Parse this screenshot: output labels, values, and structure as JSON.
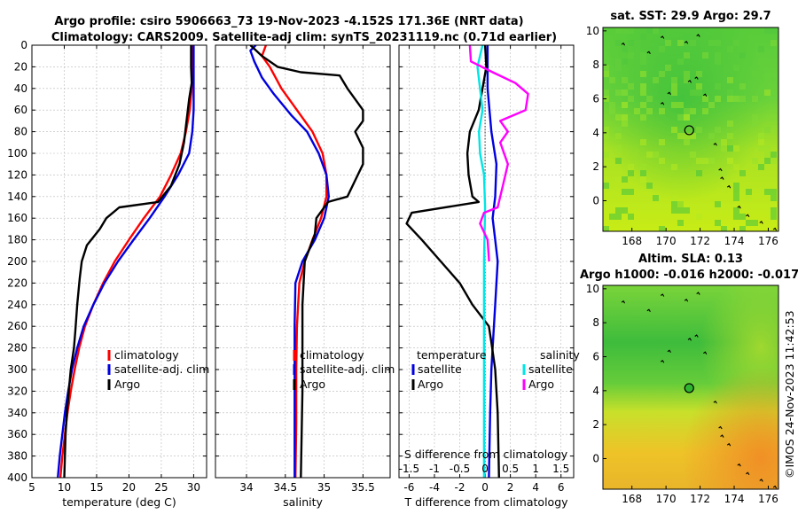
{
  "header": {
    "line1": "Argo profile: csiro 5906663_73 19-Nov-2023 -4.152S 171.36E (NRT data)",
    "line2": "Climatology: CARS2009. Satellite-adj clim: synTS_20231119.nc (0.71d earlier)"
  },
  "watermark": "©IMOS 24-Nov-2023 11:42:53",
  "colors": {
    "climatology": "#ff0000",
    "satellite": "#0000e0",
    "argo": "#000000",
    "salinity_satellite": "#00e5e5",
    "salinity_argo": "#ff00ff",
    "map_land": "#000000"
  },
  "chart_data": [
    {
      "type": "line",
      "id": "temperature",
      "xlabel": "temperature (deg C)",
      "ylabel": "",
      "xlim": [
        5,
        32
      ],
      "ylim": [
        400,
        0
      ],
      "xticks": [
        5,
        10,
        15,
        20,
        25,
        30
      ],
      "xtick_labels": [
        "5",
        "10",
        "15",
        "20",
        "25",
        "30"
      ],
      "yticks": [
        0,
        20,
        40,
        60,
        80,
        100,
        120,
        140,
        160,
        180,
        200,
        220,
        240,
        260,
        280,
        300,
        320,
        340,
        360,
        380,
        400
      ],
      "ytick_labels": [
        "0",
        "20",
        "40",
        "60",
        "80",
        "100",
        "120",
        "140",
        "160",
        "180",
        "200",
        "220",
        "240",
        "260",
        "280",
        "300",
        "320",
        "340",
        "360",
        "380",
        "400"
      ],
      "legend": [
        "climatology",
        "satellite-adj. clim",
        "Argo"
      ],
      "series": [
        {
          "name": "climatology",
          "color": "#ff0000",
          "points": [
            [
              29.8,
              0
            ],
            [
              29.8,
              20
            ],
            [
              29.7,
              40
            ],
            [
              29.4,
              60
            ],
            [
              28.8,
              80
            ],
            [
              28,
              100
            ],
            [
              26.5,
              120
            ],
            [
              24.8,
              140
            ],
            [
              22.3,
              160
            ],
            [
              20,
              180
            ],
            [
              17.8,
              200
            ],
            [
              16,
              220
            ],
            [
              14.5,
              240
            ],
            [
              13.2,
              260
            ],
            [
              12.3,
              280
            ],
            [
              11.6,
              300
            ],
            [
              11,
              320
            ],
            [
              10.5,
              340
            ],
            [
              10.1,
              360
            ],
            [
              9.7,
              380
            ],
            [
              9.4,
              400
            ]
          ]
        },
        {
          "name": "satellite-adj. clim",
          "color": "#0000e0",
          "points": [
            [
              30,
              0
            ],
            [
              30,
              20
            ],
            [
              30,
              40
            ],
            [
              30,
              60
            ],
            [
              29.8,
              80
            ],
            [
              29.3,
              100
            ],
            [
              27.6,
              120
            ],
            [
              25.5,
              140
            ],
            [
              23.2,
              160
            ],
            [
              20.7,
              180
            ],
            [
              18.3,
              200
            ],
            [
              16.2,
              220
            ],
            [
              14.5,
              240
            ],
            [
              13,
              260
            ],
            [
              12,
              280
            ],
            [
              11.2,
              300
            ],
            [
              10.6,
              320
            ],
            [
              10.1,
              340
            ],
            [
              9.7,
              360
            ],
            [
              9.3,
              380
            ],
            [
              9,
              400
            ]
          ]
        },
        {
          "name": "Argo",
          "color": "#000000",
          "points": [
            [
              29.6,
              0
            ],
            [
              29.6,
              20
            ],
            [
              29.7,
              35
            ],
            [
              29.3,
              50
            ],
            [
              28.9,
              70
            ],
            [
              28.5,
              90
            ],
            [
              27.8,
              110
            ],
            [
              26.5,
              130
            ],
            [
              24.5,
              145
            ],
            [
              18.5,
              150
            ],
            [
              16.5,
              160
            ],
            [
              15.5,
              170
            ],
            [
              13.5,
              185
            ],
            [
              12.7,
              200
            ],
            [
              12.4,
              215
            ],
            [
              12,
              240
            ],
            [
              11.7,
              265
            ],
            [
              11.5,
              280
            ],
            [
              11,
              300
            ],
            [
              10.7,
              320
            ],
            [
              10.4,
              340
            ],
            [
              10.2,
              360
            ],
            [
              10.1,
              380
            ],
            [
              10,
              400
            ]
          ]
        }
      ]
    },
    {
      "type": "line",
      "id": "salinity",
      "xlabel": "salinity",
      "ylabel": "",
      "xlim": [
        33.6,
        35.85
      ],
      "ylim": [
        400,
        0
      ],
      "xticks": [
        34,
        34.5,
        35,
        35.5
      ],
      "xtick_labels": [
        "34",
        "34.5",
        "35",
        "35.5"
      ],
      "legend": [
        "climatology",
        "satellite-adj. clim",
        "Argo"
      ],
      "series": [
        {
          "name": "climatology",
          "color": "#ff0000",
          "points": [
            [
              34.25,
              0
            ],
            [
              34.2,
              10
            ],
            [
              34.3,
              20
            ],
            [
              34.45,
              40
            ],
            [
              34.65,
              60
            ],
            [
              34.85,
              80
            ],
            [
              34.98,
              100
            ],
            [
              35.03,
              120
            ],
            [
              35.03,
              140
            ],
            [
              34.96,
              160
            ],
            [
              34.85,
              180
            ],
            [
              34.75,
              200
            ],
            [
              34.68,
              220
            ],
            [
              34.65,
              260
            ],
            [
              34.64,
              300
            ],
            [
              34.64,
              350
            ],
            [
              34.63,
              400
            ]
          ]
        },
        {
          "name": "satellite-adj. clim",
          "color": "#0000e0",
          "points": [
            [
              34.12,
              0
            ],
            [
              34.05,
              5
            ],
            [
              34.1,
              15
            ],
            [
              34.2,
              30
            ],
            [
              34.35,
              45
            ],
            [
              34.58,
              65
            ],
            [
              34.78,
              80
            ],
            [
              34.93,
              100
            ],
            [
              35.03,
              120
            ],
            [
              35.06,
              140
            ],
            [
              35,
              160
            ],
            [
              34.88,
              180
            ],
            [
              34.72,
              200
            ],
            [
              34.63,
              220
            ],
            [
              34.62,
              260
            ],
            [
              34.62,
              300
            ],
            [
              34.62,
              350
            ],
            [
              34.62,
              400
            ]
          ]
        },
        {
          "name": "Argo",
          "color": "#000000",
          "points": [
            [
              34.05,
              0
            ],
            [
              34.2,
              10
            ],
            [
              34.4,
              20
            ],
            [
              34.7,
              25
            ],
            [
              35.2,
              28
            ],
            [
              35.3,
              40
            ],
            [
              35.5,
              60
            ],
            [
              35.5,
              70
            ],
            [
              35.4,
              80
            ],
            [
              35.5,
              95
            ],
            [
              35.5,
              110
            ],
            [
              35.4,
              125
            ],
            [
              35.3,
              140
            ],
            [
              35.05,
              145
            ],
            [
              34.9,
              160
            ],
            [
              34.88,
              175
            ],
            [
              34.75,
              200
            ],
            [
              34.72,
              240
            ],
            [
              34.72,
              280
            ],
            [
              34.72,
              320
            ],
            [
              34.71,
              360
            ],
            [
              34.7,
              400
            ]
          ]
        }
      ]
    },
    {
      "type": "line",
      "id": "differences",
      "xlabel": "T difference from climatology",
      "xlabel_top": "S difference from climatology",
      "xlim": [
        -6.8,
        7
      ],
      "ylim": [
        400,
        0
      ],
      "xticks": [
        -6,
        -4,
        -2,
        0,
        2,
        4,
        6
      ],
      "xtick_labels": [
        "-6",
        "-4",
        "-2",
        "0",
        "2",
        "4",
        "6"
      ],
      "s_ticks": [
        -1.5,
        -1,
        -0.5,
        0,
        0.5,
        1,
        1.5
      ],
      "s_tick_labels": [
        "-1.5",
        "-1",
        "-0.5",
        "0",
        "0.5",
        "1",
        "1.5"
      ],
      "legend_temperature_title": "temperature",
      "legend_salinity_title": "salinity",
      "legend_satellite": "satellite",
      "legend_argo": "Argo",
      "series": [
        {
          "name": "T satellite",
          "color": "#0000e0",
          "points": [
            [
              0.2,
              0
            ],
            [
              0.2,
              40
            ],
            [
              0.5,
              80
            ],
            [
              0.9,
              110
            ],
            [
              0.8,
              140
            ],
            [
              0.6,
              160
            ],
            [
              0.8,
              180
            ],
            [
              1,
              200
            ],
            [
              0.8,
              240
            ],
            [
              0.6,
              280
            ],
            [
              0.5,
              300
            ],
            [
              0.4,
              340
            ],
            [
              0.3,
              400
            ]
          ]
        },
        {
          "name": "T Argo",
          "color": "#000000",
          "points": [
            [
              0,
              0
            ],
            [
              0.1,
              20
            ],
            [
              -0.2,
              40
            ],
            [
              -0.5,
              60
            ],
            [
              -1.2,
              80
            ],
            [
              -1.4,
              100
            ],
            [
              -1.3,
              120
            ],
            [
              -1,
              140
            ],
            [
              -0.5,
              145
            ],
            [
              -5.8,
              155
            ],
            [
              -6.2,
              165
            ],
            [
              -5,
              180
            ],
            [
              -3.5,
              200
            ],
            [
              -2,
              220
            ],
            [
              -1,
              240
            ],
            [
              0.3,
              260
            ],
            [
              0.5,
              275
            ],
            [
              0.8,
              300
            ],
            [
              1,
              340
            ],
            [
              1.1,
              400
            ]
          ]
        },
        {
          "name": "S satellite",
          "color": "#00e5e5",
          "points": [
            [
              -0.05,
              0
            ],
            [
              -0.15,
              20
            ],
            [
              -0.1,
              40
            ],
            [
              -0.05,
              60
            ],
            [
              -0.12,
              80
            ],
            [
              -0.1,
              100
            ],
            [
              -0.02,
              120
            ],
            [
              0,
              150
            ],
            [
              -0.02,
              200
            ],
            [
              -0.02,
              300
            ],
            [
              -0.02,
              400
            ]
          ]
        },
        {
          "name": "S Argo",
          "color": "#ff00ff",
          "points": [
            [
              -0.3,
              0
            ],
            [
              -0.28,
              15
            ],
            [
              0.15,
              25
            ],
            [
              0.6,
              35
            ],
            [
              0.85,
              45
            ],
            [
              0.8,
              60
            ],
            [
              0.3,
              70
            ],
            [
              0.45,
              80
            ],
            [
              0.3,
              90
            ],
            [
              0.45,
              110
            ],
            [
              0.35,
              130
            ],
            [
              0.25,
              150
            ],
            [
              -0.02,
              155
            ],
            [
              -0.1,
              165
            ],
            [
              0.05,
              180
            ],
            [
              0.08,
              200
            ]
          ]
        }
      ]
    }
  ],
  "maps": [
    {
      "id": "sst-map",
      "title1": "sat. SST: 29.9 Argo: 29.7",
      "title2": "",
      "xlim": [
        166.3,
        176.6
      ],
      "ylim": [
        -1.8,
        10.2
      ],
      "xticks": [
        168,
        170,
        172,
        174,
        176
      ],
      "xtick_labels": [
        "168",
        "170",
        "172",
        "174",
        "176"
      ],
      "yticks": [
        0,
        2,
        4,
        6,
        8,
        10
      ],
      "ytick_labels": [
        "0",
        "2",
        "4",
        "6",
        "8",
        "10"
      ],
      "float_lon": 171.36,
      "float_lat": 4.152,
      "float_fill": "none"
    },
    {
      "id": "sla-map",
      "title1": "Altim. SLA: 0.13",
      "title2": "Argo h1000: -0.016 h2000: -0.017",
      "xlim": [
        166.3,
        176.6
      ],
      "ylim": [
        -1.8,
        10.2
      ],
      "xticks": [
        168,
        170,
        172,
        174,
        176
      ],
      "xtick_labels": [
        "168",
        "170",
        "172",
        "174",
        "176"
      ],
      "yticks": [
        0,
        2,
        4,
        6,
        8,
        10
      ],
      "ytick_labels": [
        "0",
        "2",
        "4",
        "6",
        "8",
        "10"
      ],
      "float_lon": 171.36,
      "float_lat": 4.152,
      "float_fill": "#2fb52f"
    }
  ]
}
